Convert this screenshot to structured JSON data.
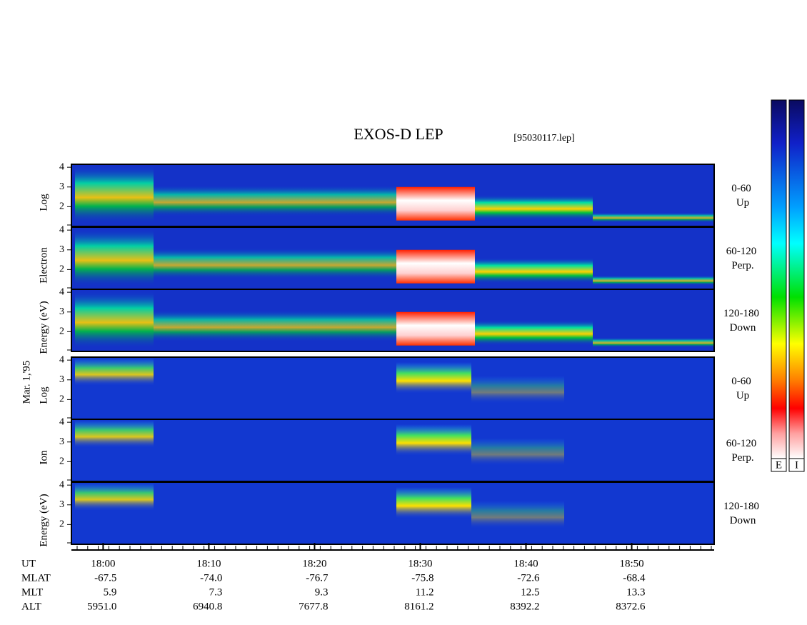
{
  "chart_data": {
    "type": "spectrogram",
    "title": "EXOS-D LEP",
    "subtitle": "[95030117.lep]",
    "date_label": "Mar. 1,'95",
    "blocks": [
      {
        "y_label_parts": [
          "Log",
          "Electron",
          "Energy (eV)"
        ]
      },
      {
        "y_label_parts": [
          "Log",
          "Ion",
          "Energy (eV)"
        ]
      }
    ],
    "panels": [
      {
        "angle": "0-60",
        "direction": "Up"
      },
      {
        "angle": "60-120",
        "direction": "Perp."
      },
      {
        "angle": "120-180",
        "direction": "Down"
      }
    ],
    "ylim": [
      1,
      4.15
    ],
    "yticks": [
      2,
      3,
      4
    ],
    "x_label": "UT",
    "xlim": [
      -3,
      57.8
    ],
    "xticks": [
      {
        "value": 0,
        "label": "18:00"
      },
      {
        "value": 10,
        "label": "18:10"
      },
      {
        "value": 20,
        "label": "18:20"
      },
      {
        "value": 30,
        "label": "18:30"
      },
      {
        "value": 40,
        "label": "18:40"
      },
      {
        "value": 50,
        "label": "18:50"
      }
    ],
    "ephemeris": [
      {
        "name": "MLAT",
        "values": [
          -67.5,
          -74.0,
          -76.7,
          -75.8,
          -72.6,
          -68.4
        ],
        "value_labels": [
          "-67.5",
          "-74.0",
          "-76.7",
          "-75.8",
          "-72.6",
          "-68.4"
        ]
      },
      {
        "name": "MLT",
        "values": [
          5.9,
          7.3,
          9.3,
          11.2,
          12.5,
          13.3
        ]
      },
      {
        "name": "ALT",
        "values": [
          5951.0,
          6940.8,
          7677.8,
          8161.2,
          8392.2,
          8372.6
        ],
        "value_labels": [
          "5951.0",
          "6940.8",
          "7677.8",
          "8161.2",
          "8392.2",
          "8372.6"
        ]
      }
    ],
    "colorbar_labels": [
      "E",
      "I"
    ]
  }
}
